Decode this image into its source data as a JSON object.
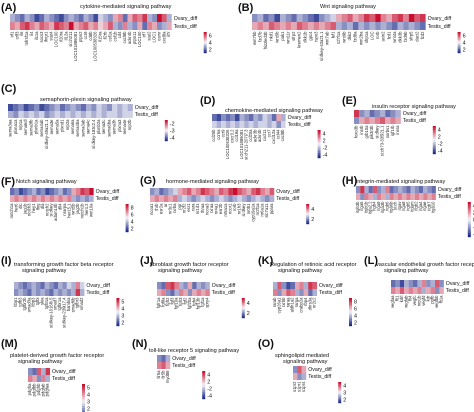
{
  "chart_data": [
    {
      "type": "heatmap",
      "letter": "(A)",
      "title": "cytokine-mediated signaling pathway",
      "rows": [
        "Ovary_diff",
        "Testis_diff"
      ],
      "genes": [
        "irf1",
        "crlf3",
        "il6",
        "tnfrsf1a",
        "il4",
        "il11a",
        "socs3",
        "ifngr1",
        "stat4",
        "LOC100",
        "il20ra",
        "il12a",
        "si:ch211",
        "LOC101886081",
        "ptpn2",
        "ccr9",
        "cd8b",
        "LOC100538326",
        "il15ra",
        "il2rb",
        "csf1a",
        "csf1b",
        "cd4",
        "cxcl8b",
        "ackr4b",
        "ptpn11",
        "LOC100",
        "irf7",
        "stat2",
        "LOC1",
        "osmr",
        "cxcl8a",
        "il7r"
      ],
      "ovary": [
        -2,
        -3,
        -4,
        -2,
        -3,
        -5,
        -4,
        -2,
        -3,
        -4,
        -5,
        -3,
        -2,
        -3,
        -4,
        -2,
        -3,
        -5,
        -1,
        -2,
        -3,
        2,
        3,
        -4,
        2,
        4,
        3,
        5,
        -2,
        -3,
        6,
        4,
        -2
      ],
      "testis": [
        3,
        2,
        4,
        5,
        3,
        2,
        4,
        3,
        2,
        5,
        4,
        3,
        6,
        2,
        3,
        4,
        2,
        3,
        1,
        2,
        4,
        -2,
        -3,
        3,
        -2,
        -3,
        2,
        -4,
        3,
        2,
        -3,
        -2,
        2
      ],
      "legend_ticks": [
        "6",
        "4",
        "2"
      ]
    },
    {
      "type": "heatmap",
      "letter": "(B)",
      "title": "Wnt signaling pathway",
      "rows": [
        "Ovary_diff",
        "Testis_diff"
      ],
      "genes": [
        "wnt7bb",
        "fzd7b",
        "frizzled3b",
        "nkd1",
        "wnt5b",
        "pak1",
        "wnt11r",
        "sfrp2",
        "kremen2",
        "dkk1b",
        "gpc4",
        "rspo3",
        "si:dkey-43a21.1",
        "wnt7ab",
        "lef1",
        "tcf7l1a",
        "wnt9b",
        "dkk2",
        "fzd8a",
        "wnt2ba",
        "sfrp1a",
        "LOC",
        "rorb",
        "axin2",
        "fzd1",
        "wnt4a",
        "dkk3b",
        "fzd9b",
        "sfrp5",
        "dact2",
        "fzd2"
      ],
      "ovary": [
        -3,
        -2,
        -4,
        -3,
        -5,
        -2,
        -3,
        -4,
        -2,
        -3,
        -4,
        -5,
        -3,
        -2,
        -1,
        2,
        3,
        4,
        2,
        3,
        5,
        4,
        6,
        3,
        2,
        4,
        5,
        3,
        6,
        4,
        5
      ],
      "testis": [
        2,
        3,
        2,
        4,
        3,
        2,
        3,
        2,
        4,
        3,
        2,
        3,
        2,
        3,
        4,
        -2,
        -3,
        -2,
        -4,
        -2,
        -3,
        -2,
        -3,
        -2,
        -3,
        -4,
        -2,
        -3,
        -2,
        -3,
        -4
      ],
      "legend_ticks": [
        "6",
        "4",
        "2"
      ]
    },
    {
      "type": "heatmap",
      "letter": "(C)",
      "title": "semaphorin-plexin signaling pathway",
      "rows": [
        "Ovary_diff",
        "Testis_diff"
      ],
      "genes": [
        "sema3aa",
        "plxna1a",
        "nrp1a",
        "sema6dl",
        "sema3fb",
        "plxnb1a",
        "sema4ab",
        "si:dkey-49a21.1",
        "sema3e",
        "sema5a",
        "plxnd1",
        "nrp2a",
        "sema6a",
        "sema4ba",
        "sema3ab",
        "sema4c",
        "si:dkey-183c2.4",
        "plxnb2a",
        "sema3c",
        "sema6ba",
        "sema3h",
        "plxna3",
        "sema4e",
        "nrp2b"
      ],
      "ovary": [
        -5,
        -4,
        -3,
        -5,
        -4,
        -3,
        -5,
        -4,
        -3,
        -2,
        -4,
        -3,
        -2,
        -3,
        -4,
        -2,
        -3,
        -1,
        -2,
        -3,
        -1,
        -2,
        -1,
        -2
      ],
      "testis": [
        -2,
        -3,
        -1,
        -2,
        -1,
        -2,
        -1,
        -3,
        -2,
        -1,
        -2,
        -1,
        -2,
        -1,
        -2,
        -1,
        -2,
        -1,
        -2,
        -1,
        -1,
        -2,
        -1,
        -1
      ],
      "legend_ticks": [
        "-2",
        "-3",
        "-4"
      ]
    },
    {
      "type": "heatmap",
      "letter": "(D)",
      "title": "chemokine-mediated signaling pathway",
      "rows": [
        "Ovary_diff",
        "Testis_diff"
      ],
      "genes": [
        "ccl25b",
        "ccr6a",
        "ccr9",
        "LOC100538326",
        "cxcr3.2",
        "ccl19a",
        "LOC101886081",
        "si:ch211-207j7.3",
        "ccl20a",
        "ackr3b",
        "ackr4b",
        "cxcl11",
        "ccr7",
        "cxcl12a",
        "ccl44",
        "cxcl8b"
      ],
      "ovary": [
        -4,
        -5,
        -3,
        -4,
        -3,
        -5,
        -2,
        -3,
        -4,
        -2,
        -3,
        -1,
        -2,
        -4,
        2,
        -2
      ],
      "testis": [
        -1,
        -2,
        -1,
        -2,
        -1,
        -2,
        -1,
        -2,
        -1,
        -2,
        -1,
        -1,
        -2,
        -1,
        -3,
        -1
      ],
      "legend_ticks": [
        "4",
        "2",
        "-2",
        "-4"
      ]
    },
    {
      "type": "heatmap",
      "letter": "(E)",
      "title": "insulin receptor signaling pathway",
      "rows": [
        "Ovary_diff",
        "Testis_diff"
      ],
      "genes": [
        "foxo3b",
        "insrb",
        "grb10a",
        "pik3r3b",
        "si:dkey",
        "si:ch73-335l21.1",
        "sorbs1",
        "igf1rb",
        "insra"
      ],
      "ovary": [
        5,
        -3,
        -2,
        -4,
        -3,
        -2,
        -4,
        -3,
        -2
      ],
      "testis": [
        -3,
        2,
        3,
        2,
        3,
        4,
        2,
        3,
        2
      ],
      "legend_ticks": [
        "4",
        "2",
        "-2",
        "-4"
      ]
    },
    {
      "type": "heatmap",
      "letter": "(F)",
      "title": "Notch signaling pathway",
      "rows": [
        "Ovary_diff",
        "Testis_diff"
      ],
      "genes": [
        "notch1a",
        "her6",
        "dlc",
        "jag1b",
        "notch3",
        "hey1",
        "lfng",
        "dla",
        "notch2",
        "si:dkey",
        "adam10b",
        "dll4",
        "nrarpa",
        "her15.1",
        "wnt5b",
        "jag2b",
        "notch1b",
        "her4.2",
        "wnt10a"
      ],
      "ovary": [
        -4,
        -3,
        -5,
        -4,
        -3,
        -2,
        -4,
        -3,
        -5,
        -4,
        -3,
        -2,
        -4,
        -3,
        2,
        3,
        5,
        4,
        6
      ],
      "testis": [
        2,
        3,
        2,
        3,
        2,
        3,
        2,
        3,
        2,
        3,
        2,
        3,
        2,
        3,
        -2,
        -3,
        -2,
        -3,
        -2
      ],
      "legend_ticks": [
        "8",
        "6",
        "4",
        "2"
      ]
    },
    {
      "type": "heatmap",
      "letter": "(G)",
      "title": "hormone-mediated signaling pathway",
      "rows": [
        "Ovary_diff",
        "Testis_diff"
      ],
      "genes": [
        "ncoa1",
        "thrb",
        "esr2a",
        "ar",
        "nr3c1",
        "rxrba",
        "pgr",
        "nr2f2",
        "esr1",
        "rara",
        "nr1d1",
        "thraa",
        "ncoa3",
        "rxraa",
        "nr4a1",
        "esr2b",
        "nr5a1a",
        "ncor1",
        "rorb",
        "nr1h3",
        "si:dkey",
        "nr0b1",
        "cyp19a1a",
        "nr2f1a",
        "nr6a1a",
        "slc7a11",
        "ppara"
      ],
      "ovary": [
        -3,
        -2,
        -4,
        -3,
        -2,
        -1,
        2,
        3,
        4,
        2,
        3,
        5,
        4,
        3,
        2,
        4,
        3,
        5,
        6,
        4,
        3,
        2,
        4,
        5,
        3,
        2,
        4
      ],
      "testis": [
        2,
        3,
        2,
        3,
        2,
        3,
        -2,
        -1,
        -2,
        -3,
        -2,
        -1,
        -2,
        -3,
        -2,
        -1,
        -2,
        -3,
        -2,
        -1,
        -2,
        -3,
        -2,
        -1,
        -2,
        -3,
        -2
      ],
      "legend_ticks": [
        "4",
        "2"
      ]
    },
    {
      "type": "heatmap",
      "letter": "(H)",
      "title": "integrin-mediated signaling pathway",
      "rows": [
        "Ovary_diff",
        "Testis_diff"
      ],
      "genes": [
        "itgb3b",
        "itga5",
        "itgb1b",
        "itga2.2",
        "itgb4",
        "itga9",
        "itga3b",
        "itgb6",
        "itga6b",
        "si:ch",
        "itgav",
        "itga8",
        "itgb5",
        "itgam",
        "itgb2",
        "itga4",
        "itgae",
        "itgb7",
        "itga10"
      ],
      "ovary": [
        -3,
        5,
        -2,
        -4,
        4,
        -3,
        -2,
        3,
        -4,
        -3,
        -2,
        -3,
        -4,
        -2,
        -3,
        -4,
        -2,
        -3,
        -4
      ],
      "testis": [
        2,
        -3,
        3,
        2,
        -2,
        3,
        2,
        -2,
        3,
        2,
        3,
        2,
        3,
        2,
        3,
        2,
        3,
        2,
        3
      ],
      "legend_ticks": [
        "4",
        "2",
        "0",
        "-2",
        "-4"
      ]
    },
    {
      "type": "heatmap",
      "letter": "(I)",
      "title": "transforming growth factor beta receptor signaling pathway",
      "rows": [
        "Ovary_diff",
        "Testis_diff"
      ],
      "genes": [
        "ltbp1",
        "tgfb3",
        "tgfbr2b",
        "smad3a",
        "ltbp3",
        "tgfbi",
        "skia",
        "tgfb1a",
        "si:dkey-1016l6.5",
        "smad7",
        "tgfbr1a",
        "si:dkey-239i17.4",
        "bambia",
        "smad6b",
        "tgfbr3",
        "smad2"
      ],
      "ovary": [
        -2,
        -3,
        -4,
        -3,
        -2,
        -3,
        -4,
        -2,
        -3,
        -4,
        -2,
        -3,
        -1,
        -2,
        3,
        -1
      ],
      "testis": [
        -3,
        -2,
        -3,
        -4,
        -2,
        -3,
        -2,
        -3,
        -4,
        -2,
        -3,
        -2,
        -3,
        -2,
        5,
        -2
      ],
      "legend_ticks": [
        "5",
        "4",
        "3",
        "2"
      ]
    },
    {
      "type": "heatmap",
      "letter": "(J)",
      "title": "fibroblast growth factor receptor signaling pathway",
      "rows": [
        "Ovary_diff",
        "Testis_diff"
      ],
      "genes": [
        "fgfr1a",
        "fgf8a",
        "fgfr2",
        "fgf3",
        "fgf10a",
        "fgfr3",
        "fgf2",
        "fgf20a",
        "fgfr4",
        "fgf13b",
        "fgf1a",
        "spry4"
      ],
      "ovary": [
        -3,
        -4,
        4,
        5,
        3,
        -2,
        -3,
        2,
        -4,
        -2,
        -3,
        -2
      ],
      "testis": [
        2,
        3,
        -3,
        -4,
        -2,
        3,
        2,
        -3,
        2,
        3,
        2,
        3
      ],
      "legend_ticks": [
        "4",
        "2"
      ]
    },
    {
      "type": "heatmap",
      "letter": "(K)",
      "title": "Regulation of retinoic acid receptor signaling pathway",
      "rows": [
        "Ovary_diff",
        "Testis_diff"
      ],
      "genes": [
        "rarab",
        "cyp26a1",
        "rxrbb",
        "raraa",
        "aldh1a2",
        "rarga",
        "crabp2a",
        "rbp4",
        "dhrs3a",
        "nr2c2"
      ],
      "ovary": [
        -2,
        4,
        -3,
        -5,
        -4,
        2,
        3,
        -2,
        5,
        4
      ],
      "testis": [
        3,
        -3,
        2,
        4,
        3,
        -2,
        -3,
        2,
        -4,
        -2
      ],
      "legend_ticks": [
        "8",
        "6",
        "4",
        "2"
      ]
    },
    {
      "type": "heatmap",
      "letter": "(L)",
      "title": "vascular endothelial growth factor receptor signaling pathway",
      "rows": [
        "Ovary_diff",
        "Testis_diff"
      ],
      "genes": [
        "vegfaa",
        "flt1",
        "kdrl",
        "vegfab",
        "flt4",
        "vegfc",
        "nrp1b",
        "vegfd",
        "kdr",
        "pgfb",
        "vegfbb",
        "flt1a"
      ],
      "ovary": [
        -4,
        -3,
        -5,
        -2,
        -3,
        -4,
        -2,
        3,
        -3,
        -2,
        4,
        -3
      ],
      "testis": [
        3,
        2,
        4,
        2,
        3,
        2,
        3,
        -2,
        2,
        3,
        -3,
        2
      ],
      "legend_ticks": [
        "6",
        "4",
        "2",
        "0"
      ]
    },
    {
      "type": "heatmap",
      "letter": "(M)",
      "title": "platelet-derived growth factor receptor signaling pathway",
      "rows": [
        "Ovary_diff",
        "Testis_diff"
      ],
      "genes": [
        "pdgfra",
        "pdgfbb",
        "pdgfrb",
        "pdgfab",
        "pdgfaa"
      ],
      "ovary": [
        -3,
        -4,
        4,
        -2,
        5
      ],
      "testis": [
        3,
        2,
        -3,
        3,
        -2
      ],
      "legend_ticks": [
        "5",
        "4",
        "3",
        "2",
        "1.5"
      ]
    },
    {
      "type": "heatmap",
      "letter": "(N)",
      "title": "toll-like receptor 5 signaling pathway",
      "rows": [
        "Ovary_diff",
        "Testis_diff"
      ],
      "genes": [
        "tlr5a",
        "tlr5b",
        "myd88"
      ],
      "ovary": [
        -3,
        -4,
        -2
      ],
      "testis": [
        3,
        4,
        2
      ],
      "legend_ticks": [
        "4",
        "2",
        "-2",
        "-4"
      ]
    },
    {
      "type": "heatmap",
      "letter": "(O)",
      "title": "sphingolipid mediated signaling pathway",
      "rows": [
        "Ovary_diff",
        "Testis_diff"
      ],
      "genes": [
        "s1pr2",
        "s1pr1",
        "s1pr4"
      ],
      "ovary": [
        -3,
        4,
        2
      ],
      "testis": [
        2,
        -3,
        -2
      ],
      "legend_ticks": [
        "4",
        "3",
        "2"
      ]
    }
  ],
  "colors": {
    "high": "#c8102e",
    "mid": "#f4f4f8",
    "low": "#1b2a8a"
  }
}
